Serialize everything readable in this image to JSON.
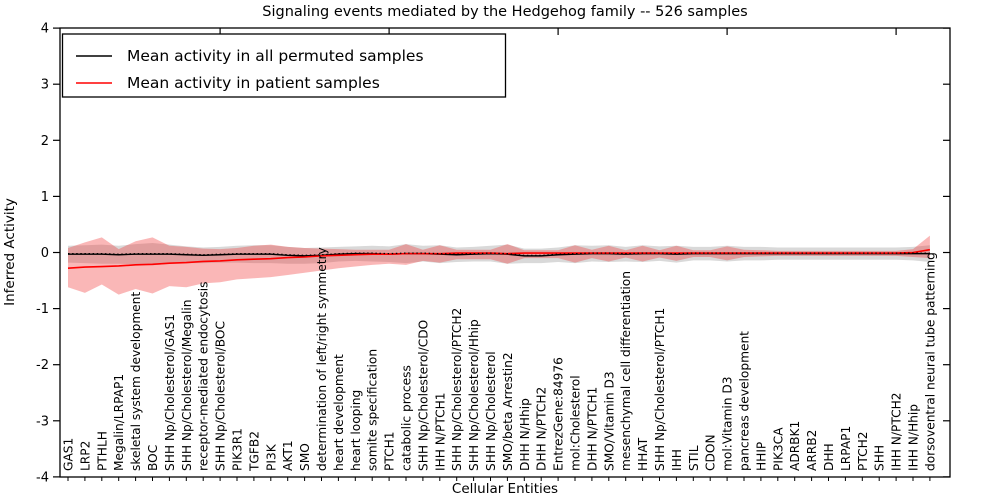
{
  "title": "Signaling events mediated by the Hedgehog family -- 526 samples",
  "legend": {
    "entries": [
      {
        "label": "Mean activity in all permuted samples",
        "color": "#000000"
      },
      {
        "label": "Mean activity in patient samples",
        "color": "#ff0000"
      }
    ],
    "position": "upper left"
  },
  "colors": {
    "permuted_line": "#000000",
    "patient_line": "#ff0000",
    "permuted_band": "#aaaaaa",
    "patient_band": "#f03030",
    "frame": "#000000",
    "background": "#ffffff"
  },
  "chart_data": {
    "type": "line",
    "title": "Signaling events mediated by the Hedgehog family -- 526 samples",
    "xlabel": "Cellular Entities",
    "ylabel": "Inferred Activity",
    "ylim": [
      -4,
      4
    ],
    "yticks": [
      -4,
      -3,
      -2,
      -1,
      0,
      1,
      2,
      3,
      4
    ],
    "grid": false,
    "legend_position": "upper left",
    "categories": [
      "GAS1",
      "LRP2",
      "PTHLH",
      "Megalin/LRPAP1",
      "skeletal system development",
      "BOC",
      "SHH Np/Cholesterol/GAS1",
      "SHH Np/Cholesterol/Megalin",
      "receptor-mediated endocytosis",
      "SHH Np/Cholesterol/BOC",
      "PIK3R1",
      "TGFB2",
      "PI3K",
      "AKT1",
      "SMO",
      "determination of left/right symmetry",
      "heart development",
      "heart looping",
      "somite specification",
      "PTCH1",
      "catabolic process",
      "SHH Np/Cholesterol/CDO",
      "IHH N/PTCH1",
      "SHH Np/Cholesterol/PTCH2",
      "SHH Np/Cholesterol/Hhip",
      "SHH Np/Cholesterol",
      "SMO/beta Arrestin2",
      "DHH N/Hhip",
      "DHH N/PTCH2",
      "EntrezGene:84976",
      "mol:Cholesterol",
      "DHH N/PTCH1",
      "SMO/Vitamin D3",
      "mesenchymal cell differentiation",
      "HHAT",
      "SHH Np/Cholesterol/PTCH1",
      "IHH",
      "STIL",
      "CDON",
      "mol:Vitamin D3",
      "pancreas development",
      "HHIP",
      "PIK3CA",
      "ADRBK1",
      "ARRB2",
      "DHH",
      "LRPAP1",
      "PTCH2",
      "SHH",
      "IHH N/PTCH2",
      "IHH N/Hhip",
      "dorsoventral neural tube patterning"
    ],
    "top_tick_indices": [
      9,
      19,
      29,
      39,
      49
    ],
    "series": [
      {
        "name": "Mean activity in all permuted samples",
        "color": "#000000",
        "style": "solid",
        "width": 1.4,
        "values": [
          -0.03,
          -0.03,
          -0.03,
          -0.04,
          -0.03,
          -0.03,
          -0.03,
          -0.04,
          -0.05,
          -0.04,
          -0.03,
          -0.03,
          -0.03,
          -0.05,
          -0.06,
          -0.05,
          -0.03,
          -0.02,
          -0.02,
          -0.03,
          -0.02,
          -0.02,
          -0.03,
          -0.04,
          -0.03,
          -0.02,
          -0.03,
          -0.06,
          -0.06,
          -0.04,
          -0.03,
          -0.02,
          -0.02,
          -0.03,
          -0.02,
          -0.02,
          -0.03,
          -0.02,
          -0.02,
          -0.02,
          -0.02,
          -0.02,
          -0.02,
          -0.02,
          -0.02,
          -0.02,
          -0.02,
          -0.02,
          -0.02,
          -0.02,
          -0.02,
          -0.02
        ]
      },
      {
        "name": "Mean activity in patient samples",
        "color": "#ff0000",
        "style": "solid",
        "width": 1.6,
        "values": [
          -0.28,
          -0.26,
          -0.25,
          -0.24,
          -0.22,
          -0.21,
          -0.19,
          -0.18,
          -0.16,
          -0.15,
          -0.13,
          -0.12,
          -0.11,
          -0.09,
          -0.08,
          -0.06,
          -0.05,
          -0.04,
          -0.03,
          -0.03,
          -0.02,
          -0.02,
          -0.02,
          -0.01,
          -0.01,
          -0.01,
          -0.02,
          -0.01,
          -0.01,
          -0.01,
          -0.01,
          -0.01,
          -0.01,
          -0.01,
          -0.01,
          -0.01,
          -0.01,
          -0.01,
          -0.01,
          -0.01,
          -0.01,
          -0.01,
          -0.01,
          -0.01,
          -0.01,
          -0.01,
          -0.01,
          -0.01,
          -0.01,
          -0.01,
          0.0,
          0.05
        ]
      },
      {
        "name": "permuted mean dotted overlay",
        "color": "#000000",
        "style": "dotted",
        "width": 1.2,
        "values": [
          -0.02,
          -0.02,
          -0.02,
          -0.03,
          -0.02,
          -0.02,
          -0.02,
          -0.03,
          -0.04,
          -0.03,
          -0.02,
          -0.02,
          -0.02,
          -0.04,
          -0.05,
          -0.04,
          -0.02,
          -0.01,
          -0.01,
          -0.02,
          -0.01,
          -0.01,
          -0.02,
          -0.03,
          -0.02,
          -0.01,
          -0.02,
          -0.05,
          -0.05,
          -0.03,
          -0.02,
          -0.01,
          -0.01,
          -0.02,
          -0.01,
          -0.01,
          -0.02,
          -0.01,
          -0.01,
          -0.01,
          -0.01,
          -0.01,
          -0.01,
          -0.01,
          -0.01,
          -0.01,
          -0.01,
          -0.01,
          -0.01,
          -0.01,
          -0.01,
          -0.01
        ]
      }
    ],
    "bands": [
      {
        "name": "permuted range",
        "color": "#aaaaaa",
        "opacity": 0.45,
        "upper": [
          0.12,
          0.13,
          0.14,
          0.12,
          0.15,
          0.17,
          0.14,
          0.11,
          0.09,
          0.1,
          0.12,
          0.13,
          0.13,
          0.1,
          0.08,
          0.09,
          0.1,
          0.11,
          0.12,
          0.11,
          0.15,
          0.12,
          0.13,
          0.09,
          0.1,
          0.12,
          0.14,
          0.07,
          0.07,
          0.09,
          0.13,
          0.12,
          0.13,
          0.1,
          0.13,
          0.11,
          0.12,
          0.1,
          0.1,
          0.12,
          0.1,
          0.1,
          0.09,
          0.09,
          0.09,
          0.09,
          0.09,
          0.09,
          0.09,
          0.09,
          0.1,
          0.13
        ],
        "lower": [
          -0.18,
          -0.19,
          -0.2,
          -0.2,
          -0.21,
          -0.23,
          -0.2,
          -0.19,
          -0.19,
          -0.18,
          -0.18,
          -0.19,
          -0.19,
          -0.2,
          -0.2,
          -0.19,
          -0.16,
          -0.15,
          -0.16,
          -0.17,
          -0.19,
          -0.16,
          -0.19,
          -0.17,
          -0.16,
          -0.16,
          -0.2,
          -0.19,
          -0.19,
          -0.17,
          -0.19,
          -0.16,
          -0.17,
          -0.16,
          -0.17,
          -0.15,
          -0.18,
          -0.14,
          -0.14,
          -0.16,
          -0.14,
          -0.14,
          -0.13,
          -0.13,
          -0.13,
          -0.13,
          -0.13,
          -0.13,
          -0.13,
          -0.13,
          -0.14,
          -0.17
        ]
      },
      {
        "name": "patient range",
        "color": "#f03030",
        "opacity": 0.35,
        "upper": [
          0.08,
          0.18,
          0.27,
          0.06,
          0.2,
          0.27,
          0.12,
          0.1,
          0.07,
          0.06,
          0.08,
          0.12,
          0.14,
          0.1,
          0.08,
          0.07,
          0.06,
          0.05,
          0.05,
          0.05,
          0.15,
          0.05,
          0.13,
          0.05,
          0.05,
          0.05,
          0.15,
          0.04,
          0.04,
          0.04,
          0.13,
          0.05,
          0.12,
          0.04,
          0.12,
          0.04,
          0.12,
          0.04,
          0.04,
          0.11,
          0.05,
          0.04,
          0.03,
          0.03,
          0.03,
          0.03,
          0.03,
          0.03,
          0.03,
          0.03,
          0.06,
          0.3
        ],
        "lower": [
          -0.62,
          -0.72,
          -0.57,
          -0.75,
          -0.65,
          -0.73,
          -0.6,
          -0.62,
          -0.55,
          -0.53,
          -0.48,
          -0.46,
          -0.44,
          -0.4,
          -0.36,
          -0.32,
          -0.28,
          -0.25,
          -0.22,
          -0.2,
          -0.22,
          -0.15,
          -0.18,
          -0.12,
          -0.12,
          -0.12,
          -0.2,
          -0.1,
          -0.1,
          -0.1,
          -0.18,
          -0.1,
          -0.16,
          -0.09,
          -0.16,
          -0.09,
          -0.15,
          -0.08,
          -0.08,
          -0.14,
          -0.08,
          -0.07,
          -0.06,
          -0.06,
          -0.06,
          -0.06,
          -0.06,
          -0.06,
          -0.06,
          -0.06,
          -0.08,
          -0.1
        ]
      }
    ]
  }
}
